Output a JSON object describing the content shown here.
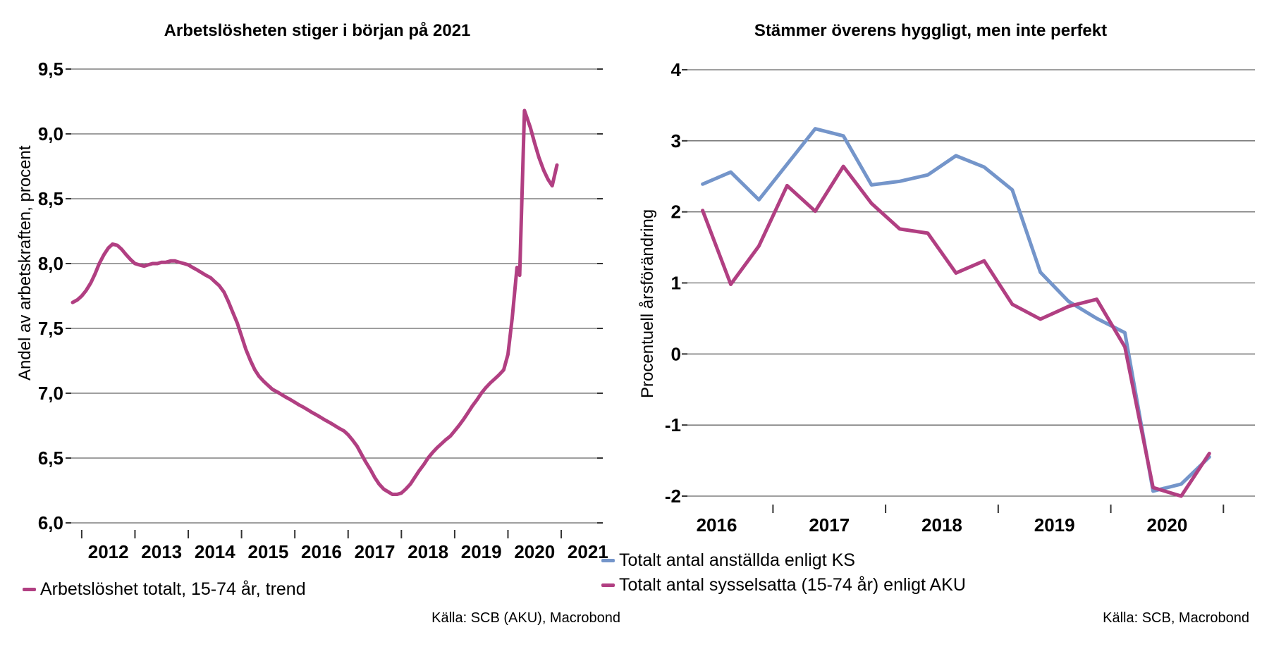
{
  "charts": [
    {
      "title": "Arbetslösheten stiger i början på 2021",
      "ylabel": "Andel av arbetskraften, procent",
      "source": "Källa: SCB (AKU), Macrobond",
      "legend": [
        {
          "label": "Arbetslöshet totalt, 15-74 år, trend",
          "color": "#b13f82"
        }
      ],
      "chart_data": {
        "type": "line",
        "title": "Arbetslösheten stiger i början på 2021",
        "xlabel": "",
        "ylabel": "Andel av arbetskraften, procent",
        "ylim": [
          6.0,
          9.5
        ],
        "xlim": [
          2011.79,
          2021.78
        ],
        "grid": true,
        "yticks": [
          9.5,
          9.0,
          8.5,
          8.0,
          7.5,
          7.0,
          6.5,
          6.0
        ],
        "ytick_labels": [
          "9,5",
          "9,0",
          "8,5",
          "8,0",
          "7,5",
          "7,0",
          "6,5",
          "6,0"
        ],
        "xticks": [
          2012,
          2013,
          2014,
          2015,
          2016,
          2017,
          2018,
          2019,
          2020,
          2021
        ],
        "x_label_pos": [
          2012.5,
          2013.5,
          2014.5,
          2015.5,
          2016.5,
          2017.5,
          2018.5,
          2019.5,
          2020.5,
          2021.5
        ],
        "x_label_texts": [
          "2012",
          "2013",
          "2014",
          "2015",
          "2016",
          "2017",
          "2018",
          "2019",
          "2020",
          "2021"
        ],
        "series": [
          {
            "name": "Arbetslöshet totalt, 15-74 år, trend",
            "color": "#b13f82",
            "x": [
              2011.83,
              2011.92,
              2012.0,
              2012.08,
              2012.17,
              2012.25,
              2012.33,
              2012.42,
              2012.5,
              2012.58,
              2012.67,
              2012.75,
              2012.83,
              2012.92,
              2013.0,
              2013.08,
              2013.17,
              2013.25,
              2013.33,
              2013.42,
              2013.5,
              2013.58,
              2013.67,
              2013.75,
              2013.83,
              2013.92,
              2014.0,
              2014.08,
              2014.17,
              2014.25,
              2014.33,
              2014.42,
              2014.5,
              2014.58,
              2014.67,
              2014.75,
              2014.83,
              2014.92,
              2015.0,
              2015.08,
              2015.17,
              2015.25,
              2015.33,
              2015.42,
              2015.5,
              2015.58,
              2015.67,
              2015.75,
              2015.83,
              2015.92,
              2016.0,
              2016.08,
              2016.17,
              2016.25,
              2016.33,
              2016.42,
              2016.5,
              2016.58,
              2016.67,
              2016.75,
              2016.83,
              2016.92,
              2017.0,
              2017.08,
              2017.17,
              2017.25,
              2017.33,
              2017.42,
              2017.5,
              2017.58,
              2017.67,
              2017.75,
              2017.83,
              2017.92,
              2018.0,
              2018.08,
              2018.17,
              2018.25,
              2018.33,
              2018.42,
              2018.5,
              2018.58,
              2018.67,
              2018.75,
              2018.83,
              2018.92,
              2019.0,
              2019.08,
              2019.17,
              2019.25,
              2019.33,
              2019.42,
              2019.5,
              2019.58,
              2019.67,
              2019.75,
              2019.83,
              2019.92,
              2020.0,
              2020.08,
              2020.17,
              2020.22,
              2020.31,
              2020.42,
              2020.5,
              2020.58,
              2020.67,
              2020.75,
              2020.83,
              2020.92
            ],
            "y": [
              7.7,
              7.72,
              7.75,
              7.79,
              7.85,
              7.92,
              8.0,
              8.07,
              8.12,
              8.15,
              8.14,
              8.11,
              8.07,
              8.03,
              8.0,
              7.99,
              7.98,
              7.99,
              8.0,
              8.0,
              8.01,
              8.01,
              8.02,
              8.02,
              8.01,
              8.0,
              7.99,
              7.97,
              7.95,
              7.93,
              7.91,
              7.89,
              7.86,
              7.83,
              7.78,
              7.71,
              7.63,
              7.54,
              7.44,
              7.34,
              7.25,
              7.18,
              7.13,
              7.09,
              7.06,
              7.03,
              7.01,
              6.99,
              6.97,
              6.95,
              6.93,
              6.91,
              6.89,
              6.87,
              6.85,
              6.83,
              6.81,
              6.79,
              6.77,
              6.75,
              6.73,
              6.71,
              6.68,
              6.64,
              6.59,
              6.53,
              6.47,
              6.41,
              6.35,
              6.3,
              6.26,
              6.24,
              6.22,
              6.22,
              6.23,
              6.26,
              6.3,
              6.35,
              6.4,
              6.45,
              6.5,
              6.54,
              6.58,
              6.61,
              6.64,
              6.67,
              6.71,
              6.75,
              6.8,
              6.85,
              6.9,
              6.95,
              7.0,
              7.04,
              7.08,
              7.11,
              7.14,
              7.18,
              7.3,
              7.58,
              7.97,
              7.91,
              9.18,
              9.05,
              8.93,
              8.82,
              8.72,
              8.65,
              8.6,
              8.76
            ]
          }
        ]
      }
    },
    {
      "title": "Stämmer överens hyggligt, men inte perfekt",
      "ylabel": "Procentuell årsförändring",
      "source": "Källa: SCB, Macrobond",
      "legend": [
        {
          "label": "Totalt antal anställda enligt KS",
          "color": "#7495ca"
        },
        {
          "label": "Totalt antal sysselsatta (15-74 år) enligt AKU",
          "color": "#b13f82"
        }
      ],
      "chart_data": {
        "type": "line",
        "title": "Stämmer överens hyggligt, men inte perfekt",
        "xlabel": "",
        "ylabel": "Procentuell årsförändring",
        "ylim": [
          -2,
          4
        ],
        "xlim": [
          2016.24,
          2021.28
        ],
        "grid": true,
        "yticks": [
          4,
          3,
          2,
          1,
          0,
          -1,
          -2
        ],
        "ytick_labels": [
          "4",
          "3",
          "2",
          "1",
          "0",
          "-1",
          "-2"
        ],
        "xticks": [
          2017,
          2018,
          2019,
          2020,
          2021
        ],
        "x_label_pos": [
          2016.5,
          2017.5,
          2018.5,
          2019.5,
          2020.5
        ],
        "x_label_texts": [
          "2016",
          "2017",
          "2018",
          "2019",
          "2020"
        ],
        "series": [
          {
            "name": "Totalt antal anställda enligt KS",
            "color": "#7495ca",
            "x": [
              2016.375,
              2016.625,
              2016.875,
              2017.125,
              2017.375,
              2017.625,
              2017.875,
              2018.125,
              2018.375,
              2018.625,
              2018.875,
              2019.125,
              2019.375,
              2019.625,
              2019.875,
              2020.125,
              2020.375,
              2020.625,
              2020.875
            ],
            "y": [
              2.39,
              2.56,
              2.17,
              2.67,
              3.17,
              3.07,
              2.38,
              2.43,
              2.52,
              2.79,
              2.63,
              2.31,
              1.15,
              0.74,
              0.5,
              0.3,
              -1.93,
              -1.83,
              -1.45
            ]
          },
          {
            "name": "Totalt antal sysselsatta (15-74 år) enligt AKU",
            "color": "#b13f82",
            "x": [
              2016.375,
              2016.625,
              2016.875,
              2017.125,
              2017.375,
              2017.625,
              2017.875,
              2018.125,
              2018.375,
              2018.625,
              2018.875,
              2019.125,
              2019.375,
              2019.625,
              2019.875,
              2020.125,
              2020.375,
              2020.625,
              2020.875
            ],
            "y": [
              2.02,
              0.98,
              1.52,
              2.37,
              2.01,
              2.64,
              2.12,
              1.76,
              1.7,
              1.14,
              1.31,
              0.7,
              0.49,
              0.67,
              0.77,
              0.1,
              -1.88,
              -2.0,
              -1.4
            ]
          }
        ]
      }
    }
  ]
}
